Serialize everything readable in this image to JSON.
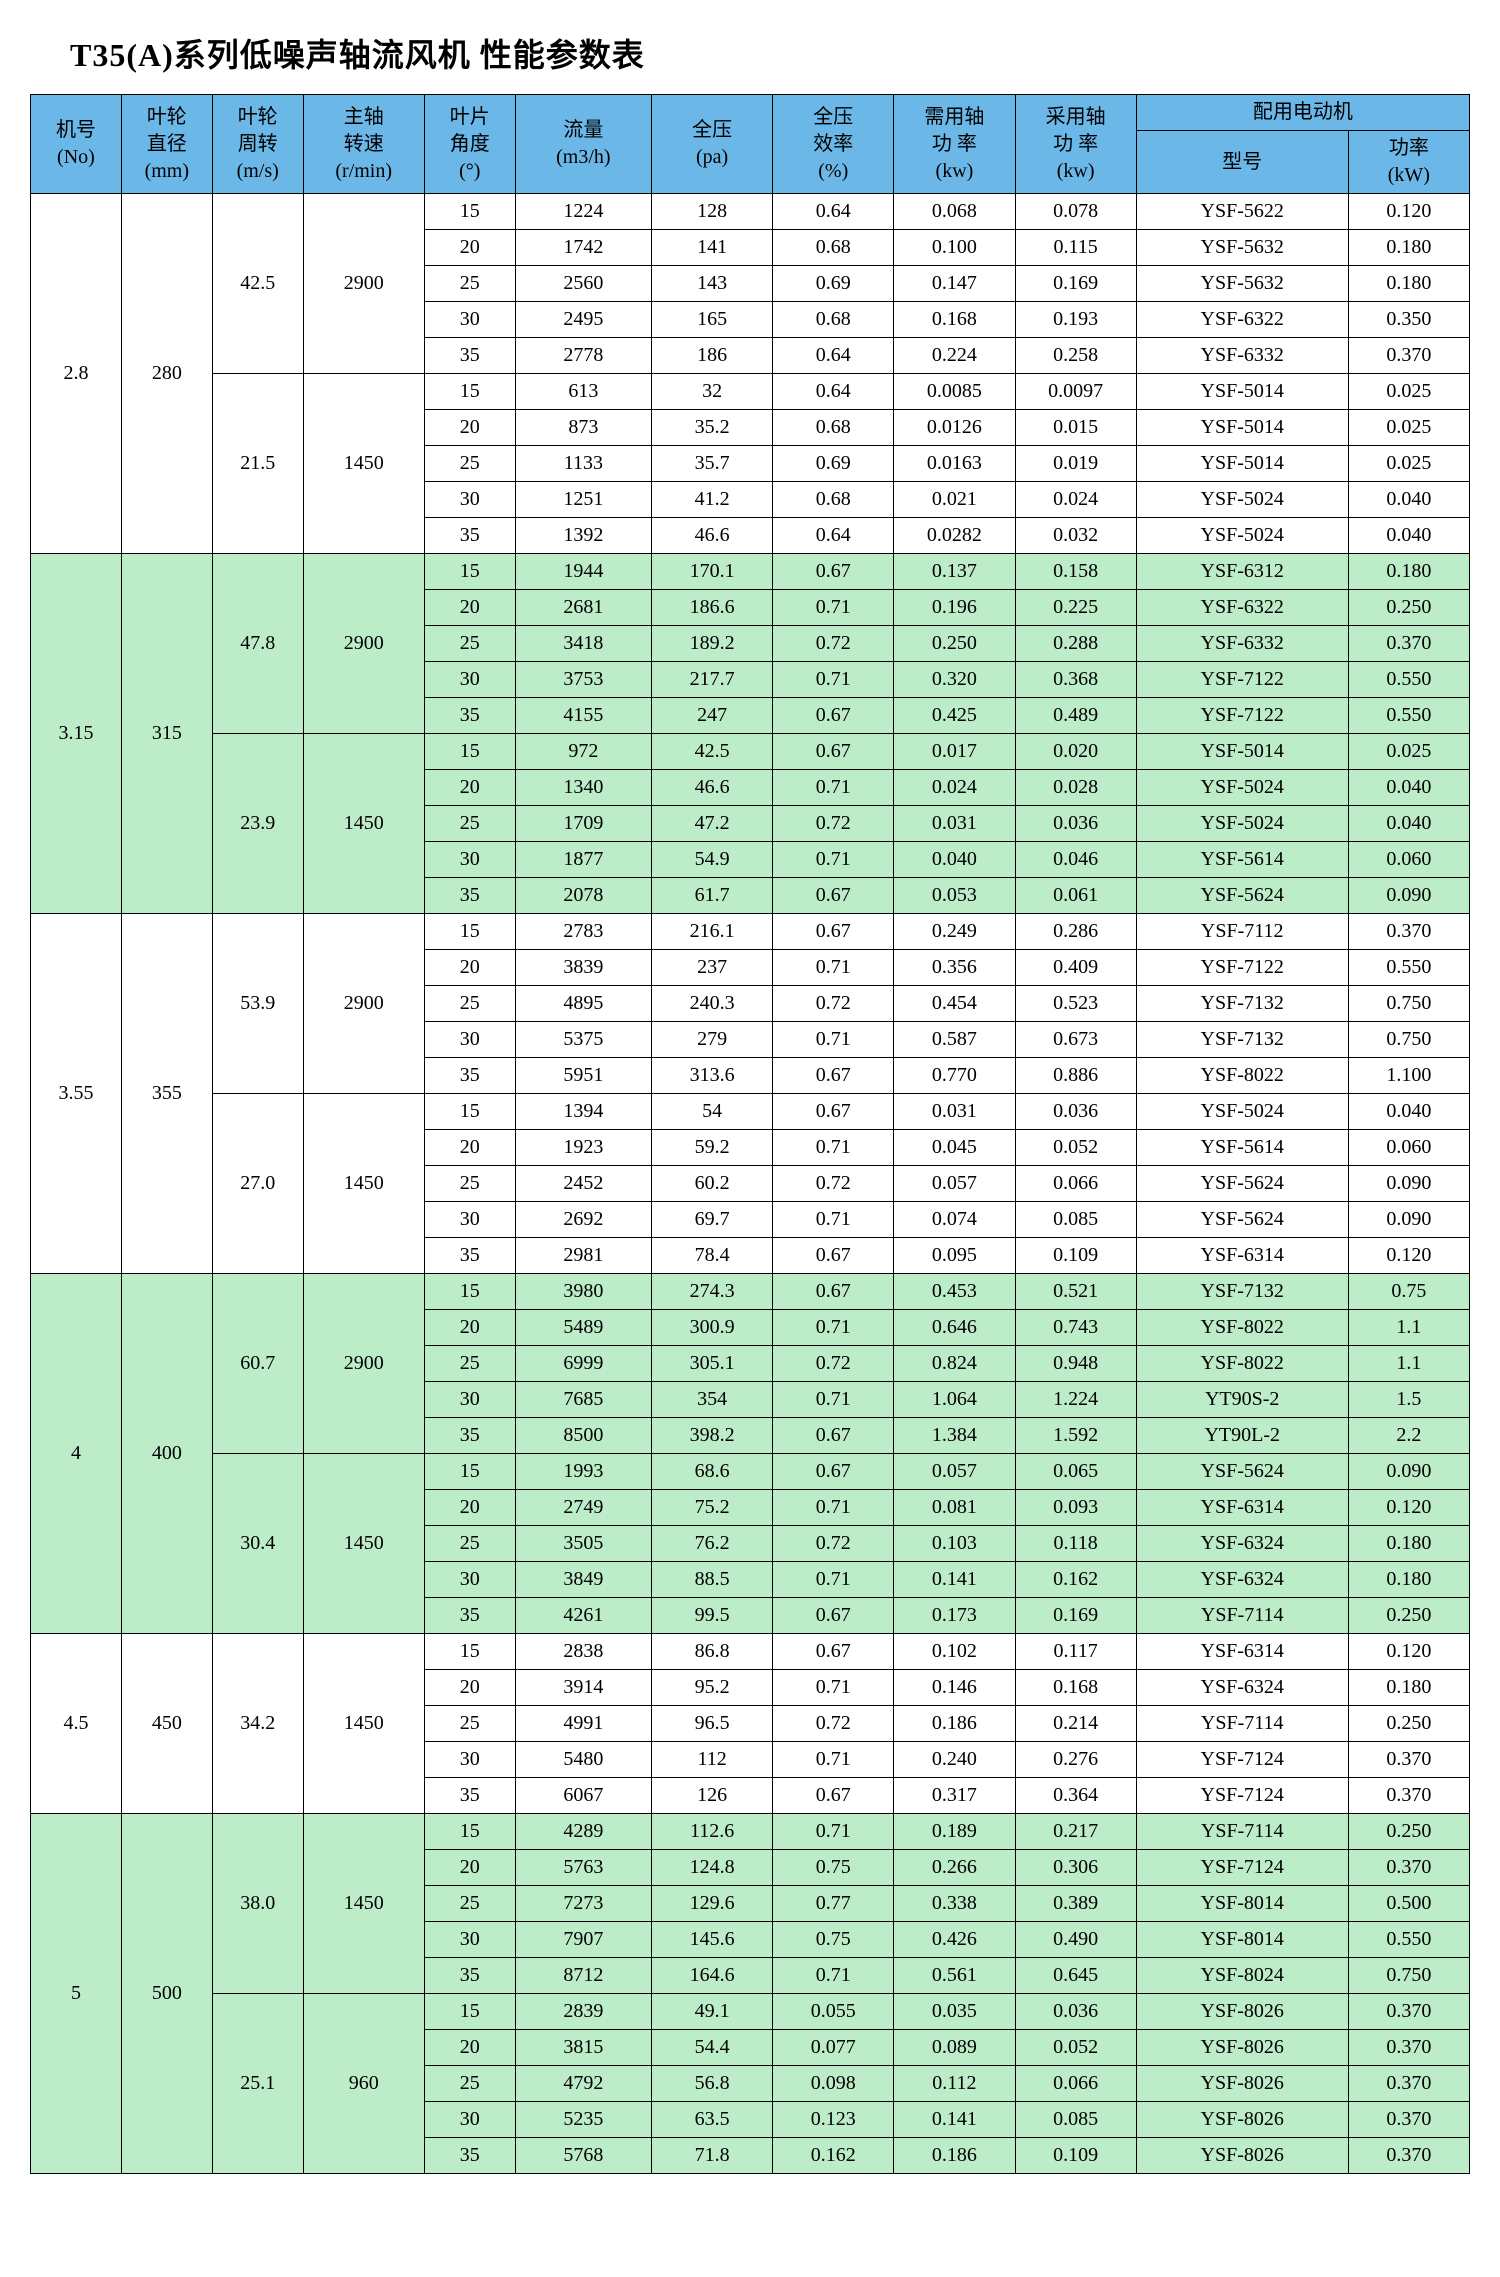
{
  "title": "T35(A)系列低噪声轴流风机 性能参数表",
  "headers": {
    "no_l1": "机号",
    "no_l2": "(No)",
    "dia_l1": "叶轮",
    "dia_l2": "直径",
    "dia_l3": "(mm)",
    "tip_l1": "叶轮",
    "tip_l2": "周转",
    "tip_l3": "(m/s)",
    "rpm_l1": "主轴",
    "rpm_l2": "转速",
    "rpm_l3": "(r/min)",
    "ang_l1": "叶片",
    "ang_l2": "角度",
    "ang_l3": "(°)",
    "flow_l1": "流量",
    "flow_l2": "(m3/h)",
    "pres_l1": "全压",
    "pres_l2": "(pa)",
    "eff_l1": "全压",
    "eff_l2": "效率",
    "eff_l3": "(%)",
    "need_l1": "需用轴",
    "need_l2": "功 率",
    "need_l3": "(kw)",
    "use_l1": "采用轴",
    "use_l2": "功 率",
    "use_l3": "(kw)",
    "motor": "配用电动机",
    "model": "型号",
    "pow_l1": "功率",
    "pow_l2": "(kW)"
  },
  "colors": {
    "header_bg": "#6bb7e8",
    "band_bg": "#bdecc9",
    "plain_bg": "#ffffff"
  },
  "groups": [
    {
      "no": "2.8",
      "dia": "280",
      "band": false,
      "subs": [
        {
          "tip": "42.5",
          "rpm": "2900",
          "rows": [
            {
              "ang": "15",
              "flow": "1224",
              "pres": "128",
              "eff": "0.64",
              "need": "0.068",
              "use": "0.078",
              "model": "YSF-5622",
              "pow": "0.120"
            },
            {
              "ang": "20",
              "flow": "1742",
              "pres": "141",
              "eff": "0.68",
              "need": "0.100",
              "use": "0.115",
              "model": "YSF-5632",
              "pow": "0.180"
            },
            {
              "ang": "25",
              "flow": "2560",
              "pres": "143",
              "eff": "0.69",
              "need": "0.147",
              "use": "0.169",
              "model": "YSF-5632",
              "pow": "0.180"
            },
            {
              "ang": "30",
              "flow": "2495",
              "pres": "165",
              "eff": "0.68",
              "need": "0.168",
              "use": "0.193",
              "model": "YSF-6322",
              "pow": "0.350"
            },
            {
              "ang": "35",
              "flow": "2778",
              "pres": "186",
              "eff": "0.64",
              "need": "0.224",
              "use": "0.258",
              "model": "YSF-6332",
              "pow": "0.370"
            }
          ]
        },
        {
          "tip": "21.5",
          "rpm": "1450",
          "rows": [
            {
              "ang": "15",
              "flow": "613",
              "pres": "32",
              "eff": "0.64",
              "need": "0.0085",
              "use": "0.0097",
              "model": "YSF-5014",
              "pow": "0.025"
            },
            {
              "ang": "20",
              "flow": "873",
              "pres": "35.2",
              "eff": "0.68",
              "need": "0.0126",
              "use": "0.015",
              "model": "YSF-5014",
              "pow": "0.025"
            },
            {
              "ang": "25",
              "flow": "1133",
              "pres": "35.7",
              "eff": "0.69",
              "need": "0.0163",
              "use": "0.019",
              "model": "YSF-5014",
              "pow": "0.025"
            },
            {
              "ang": "30",
              "flow": "1251",
              "pres": "41.2",
              "eff": "0.68",
              "need": "0.021",
              "use": "0.024",
              "model": "YSF-5024",
              "pow": "0.040"
            },
            {
              "ang": "35",
              "flow": "1392",
              "pres": "46.6",
              "eff": "0.64",
              "need": "0.0282",
              "use": "0.032",
              "model": "YSF-5024",
              "pow": "0.040"
            }
          ]
        }
      ]
    },
    {
      "no": "3.15",
      "dia": "315",
      "band": true,
      "subs": [
        {
          "tip": "47.8",
          "rpm": "2900",
          "rows": [
            {
              "ang": "15",
              "flow": "1944",
              "pres": "170.1",
              "eff": "0.67",
              "need": "0.137",
              "use": "0.158",
              "model": "YSF-6312",
              "pow": "0.180"
            },
            {
              "ang": "20",
              "flow": "2681",
              "pres": "186.6",
              "eff": "0.71",
              "need": "0.196",
              "use": "0.225",
              "model": "YSF-6322",
              "pow": "0.250"
            },
            {
              "ang": "25",
              "flow": "3418",
              "pres": "189.2",
              "eff": "0.72",
              "need": "0.250",
              "use": "0.288",
              "model": "YSF-6332",
              "pow": "0.370"
            },
            {
              "ang": "30",
              "flow": "3753",
              "pres": "217.7",
              "eff": "0.71",
              "need": "0.320",
              "use": "0.368",
              "model": "YSF-7122",
              "pow": "0.550"
            },
            {
              "ang": "35",
              "flow": "4155",
              "pres": "247",
              "eff": "0.67",
              "need": "0.425",
              "use": "0.489",
              "model": "YSF-7122",
              "pow": "0.550"
            }
          ]
        },
        {
          "tip": "23.9",
          "rpm": "1450",
          "rows": [
            {
              "ang": "15",
              "flow": "972",
              "pres": "42.5",
              "eff": "0.67",
              "need": "0.017",
              "use": "0.020",
              "model": "YSF-5014",
              "pow": "0.025"
            },
            {
              "ang": "20",
              "flow": "1340",
              "pres": "46.6",
              "eff": "0.71",
              "need": "0.024",
              "use": "0.028",
              "model": "YSF-5024",
              "pow": "0.040"
            },
            {
              "ang": "25",
              "flow": "1709",
              "pres": "47.2",
              "eff": "0.72",
              "need": "0.031",
              "use": "0.036",
              "model": "YSF-5024",
              "pow": "0.040"
            },
            {
              "ang": "30",
              "flow": "1877",
              "pres": "54.9",
              "eff": "0.71",
              "need": "0.040",
              "use": "0.046",
              "model": "YSF-5614",
              "pow": "0.060"
            },
            {
              "ang": "35",
              "flow": "2078",
              "pres": "61.7",
              "eff": "0.67",
              "need": "0.053",
              "use": "0.061",
              "model": "YSF-5624",
              "pow": "0.090"
            }
          ]
        }
      ]
    },
    {
      "no": "3.55",
      "dia": "355",
      "band": false,
      "subs": [
        {
          "tip": "53.9",
          "rpm": "2900",
          "rows": [
            {
              "ang": "15",
              "flow": "2783",
              "pres": "216.1",
              "eff": "0.67",
              "need": "0.249",
              "use": "0.286",
              "model": "YSF-7112",
              "pow": "0.370"
            },
            {
              "ang": "20",
              "flow": "3839",
              "pres": "237",
              "eff": "0.71",
              "need": "0.356",
              "use": "0.409",
              "model": "YSF-7122",
              "pow": "0.550"
            },
            {
              "ang": "25",
              "flow": "4895",
              "pres": "240.3",
              "eff": "0.72",
              "need": "0.454",
              "use": "0.523",
              "model": "YSF-7132",
              "pow": "0.750"
            },
            {
              "ang": "30",
              "flow": "5375",
              "pres": "279",
              "eff": "0.71",
              "need": "0.587",
              "use": "0.673",
              "model": "YSF-7132",
              "pow": "0.750"
            },
            {
              "ang": "35",
              "flow": "5951",
              "pres": "313.6",
              "eff": "0.67",
              "need": "0.770",
              "use": "0.886",
              "model": "YSF-8022",
              "pow": "1.100"
            }
          ]
        },
        {
          "tip": "27.0",
          "rpm": "1450",
          "rows": [
            {
              "ang": "15",
              "flow": "1394",
              "pres": "54",
              "eff": "0.67",
              "need": "0.031",
              "use": "0.036",
              "model": "YSF-5024",
              "pow": "0.040"
            },
            {
              "ang": "20",
              "flow": "1923",
              "pres": "59.2",
              "eff": "0.71",
              "need": "0.045",
              "use": "0.052",
              "model": "YSF-5614",
              "pow": "0.060"
            },
            {
              "ang": "25",
              "flow": "2452",
              "pres": "60.2",
              "eff": "0.72",
              "need": "0.057",
              "use": "0.066",
              "model": "YSF-5624",
              "pow": "0.090"
            },
            {
              "ang": "30",
              "flow": "2692",
              "pres": "69.7",
              "eff": "0.71",
              "need": "0.074",
              "use": "0.085",
              "model": "YSF-5624",
              "pow": "0.090"
            },
            {
              "ang": "35",
              "flow": "2981",
              "pres": "78.4",
              "eff": "0.67",
              "need": "0.095",
              "use": "0.109",
              "model": "YSF-6314",
              "pow": "0.120"
            }
          ]
        }
      ]
    },
    {
      "no": "4",
      "dia": "400",
      "band": true,
      "subs": [
        {
          "tip": "60.7",
          "rpm": "2900",
          "rows": [
            {
              "ang": "15",
              "flow": "3980",
              "pres": "274.3",
              "eff": "0.67",
              "need": "0.453",
              "use": "0.521",
              "model": "YSF-7132",
              "pow": "0.75"
            },
            {
              "ang": "20",
              "flow": "5489",
              "pres": "300.9",
              "eff": "0.71",
              "need": "0.646",
              "use": "0.743",
              "model": "YSF-8022",
              "pow": "1.1"
            },
            {
              "ang": "25",
              "flow": "6999",
              "pres": "305.1",
              "eff": "0.72",
              "need": "0.824",
              "use": "0.948",
              "model": "YSF-8022",
              "pow": "1.1"
            },
            {
              "ang": "30",
              "flow": "7685",
              "pres": "354",
              "eff": "0.71",
              "need": "1.064",
              "use": "1.224",
              "model": "YT90S-2",
              "pow": "1.5"
            },
            {
              "ang": "35",
              "flow": "8500",
              "pres": "398.2",
              "eff": "0.67",
              "need": "1.384",
              "use": "1.592",
              "model": "YT90L-2",
              "pow": "2.2"
            }
          ]
        },
        {
          "tip": "30.4",
          "rpm": "1450",
          "rows": [
            {
              "ang": "15",
              "flow": "1993",
              "pres": "68.6",
              "eff": "0.67",
              "need": "0.057",
              "use": "0.065",
              "model": "YSF-5624",
              "pow": "0.090"
            },
            {
              "ang": "20",
              "flow": "2749",
              "pres": "75.2",
              "eff": "0.71",
              "need": "0.081",
              "use": "0.093",
              "model": "YSF-6314",
              "pow": "0.120"
            },
            {
              "ang": "25",
              "flow": "3505",
              "pres": "76.2",
              "eff": "0.72",
              "need": "0.103",
              "use": "0.118",
              "model": "YSF-6324",
              "pow": "0.180"
            },
            {
              "ang": "30",
              "flow": "3849",
              "pres": "88.5",
              "eff": "0.71",
              "need": "0.141",
              "use": "0.162",
              "model": "YSF-6324",
              "pow": "0.180"
            },
            {
              "ang": "35",
              "flow": "4261",
              "pres": "99.5",
              "eff": "0.67",
              "need": "0.173",
              "use": "0.169",
              "model": "YSF-7114",
              "pow": "0.250"
            }
          ]
        }
      ]
    },
    {
      "no": "4.5",
      "dia": "450",
      "band": false,
      "subs": [
        {
          "tip": "34.2",
          "rpm": "1450",
          "rows": [
            {
              "ang": "15",
              "flow": "2838",
              "pres": "86.8",
              "eff": "0.67",
              "need": "0.102",
              "use": "0.117",
              "model": "YSF-6314",
              "pow": "0.120"
            },
            {
              "ang": "20",
              "flow": "3914",
              "pres": "95.2",
              "eff": "0.71",
              "need": "0.146",
              "use": "0.168",
              "model": "YSF-6324",
              "pow": "0.180"
            },
            {
              "ang": "25",
              "flow": "4991",
              "pres": "96.5",
              "eff": "0.72",
              "need": "0.186",
              "use": "0.214",
              "model": "YSF-7114",
              "pow": "0.250"
            },
            {
              "ang": "30",
              "flow": "5480",
              "pres": "112",
              "eff": "0.71",
              "need": "0.240",
              "use": "0.276",
              "model": "YSF-7124",
              "pow": "0.370"
            },
            {
              "ang": "35",
              "flow": "6067",
              "pres": "126",
              "eff": "0.67",
              "need": "0.317",
              "use": "0.364",
              "model": "YSF-7124",
              "pow": "0.370"
            }
          ]
        }
      ]
    },
    {
      "no": "5",
      "dia": "500",
      "band": true,
      "subs": [
        {
          "tip": "38.0",
          "rpm": "1450",
          "rows": [
            {
              "ang": "15",
              "flow": "4289",
              "pres": "112.6",
              "eff": "0.71",
              "need": "0.189",
              "use": "0.217",
              "model": "YSF-7114",
              "pow": "0.250"
            },
            {
              "ang": "20",
              "flow": "5763",
              "pres": "124.8",
              "eff": "0.75",
              "need": "0.266",
              "use": "0.306",
              "model": "YSF-7124",
              "pow": "0.370"
            },
            {
              "ang": "25",
              "flow": "7273",
              "pres": "129.6",
              "eff": "0.77",
              "need": "0.338",
              "use": "0.389",
              "model": "YSF-8014",
              "pow": "0.500"
            },
            {
              "ang": "30",
              "flow": "7907",
              "pres": "145.6",
              "eff": "0.75",
              "need": "0.426",
              "use": "0.490",
              "model": "YSF-8014",
              "pow": "0.550"
            },
            {
              "ang": "35",
              "flow": "8712",
              "pres": "164.6",
              "eff": "0.71",
              "need": "0.561",
              "use": "0.645",
              "model": "YSF-8024",
              "pow": "0.750"
            }
          ]
        },
        {
          "tip": "25.1",
          "rpm": "960",
          "rows": [
            {
              "ang": "15",
              "flow": "2839",
              "pres": "49.1",
              "eff": "0.055",
              "need": "0.035",
              "use": "0.036",
              "model": "YSF-8026",
              "pow": "0.370"
            },
            {
              "ang": "20",
              "flow": "3815",
              "pres": "54.4",
              "eff": "0.077",
              "need": "0.089",
              "use": "0.052",
              "model": "YSF-8026",
              "pow": "0.370"
            },
            {
              "ang": "25",
              "flow": "4792",
              "pres": "56.8",
              "eff": "0.098",
              "need": "0.112",
              "use": "0.066",
              "model": "YSF-8026",
              "pow": "0.370"
            },
            {
              "ang": "30",
              "flow": "5235",
              "pres": "63.5",
              "eff": "0.123",
              "need": "0.141",
              "use": "0.085",
              "model": "YSF-8026",
              "pow": "0.370"
            },
            {
              "ang": "35",
              "flow": "5768",
              "pres": "71.8",
              "eff": "0.162",
              "need": "0.186",
              "use": "0.109",
              "model": "YSF-8026",
              "pow": "0.370"
            }
          ]
        }
      ]
    }
  ]
}
